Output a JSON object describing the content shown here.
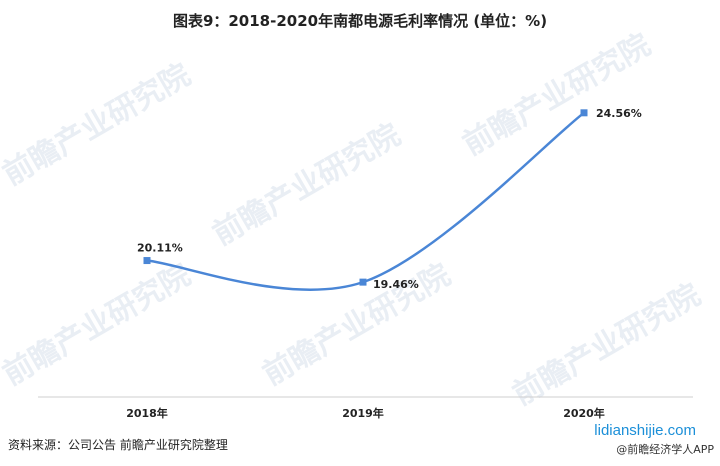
{
  "title": "图表9：2018-2020年南都电源毛利率情况 (单位：%)",
  "source": "资料来源：公司公告 前瞻产业研究院整理",
  "footer": {
    "site": "lidianshijie.com",
    "app": "@前瞻经济学人APP"
  },
  "watermark": "前瞻产业研究院",
  "colors": {
    "line": "#4a86d6",
    "axis": "#cfcfcf"
  },
  "chart_data": {
    "type": "line",
    "categories": [
      "2018年",
      "2019年",
      "2020年"
    ],
    "series": [
      {
        "values": [
          20.11,
          19.46,
          24.56
        ],
        "labels": [
          "20.11%",
          "19.46%",
          "24.56%"
        ]
      }
    ],
    "ylim": [
      16,
      26
    ],
    "grid": false,
    "smooth": true
  }
}
